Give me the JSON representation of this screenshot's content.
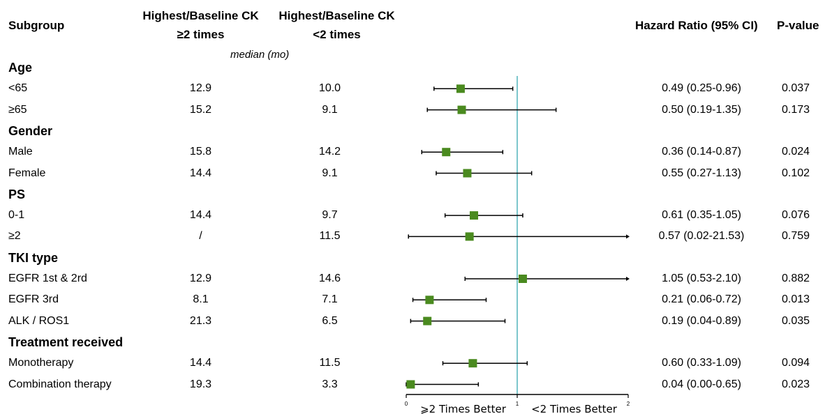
{
  "headers": {
    "subgroup": "Subgroup",
    "col1_line1": "Highest/Baseline CK",
    "col1_line2": "≥2 times",
    "col2_line1": "Highest/Baseline CK",
    "col2_line2": "<2 times",
    "median_note": "median (mo)",
    "hr": "Hazard Ratio (95% CI)",
    "p": "P-value"
  },
  "rows": [
    {
      "type": "section",
      "label": "Age"
    },
    {
      "type": "data",
      "label": "<65",
      "ge2": "12.9",
      "lt2": "10.0",
      "hr_text": "0.49 (0.25-0.96)",
      "p": "0.037"
    },
    {
      "type": "data",
      "label": "≥65",
      "ge2": "15.2",
      "lt2": "9.1",
      "hr_text": "0.50 (0.19-1.35)",
      "p": "0.173"
    },
    {
      "type": "section",
      "label": "Gender"
    },
    {
      "type": "data",
      "label": "Male",
      "ge2": "15.8",
      "lt2": "14.2",
      "hr_text": "0.36 (0.14-0.87)",
      "p": "0.024"
    },
    {
      "type": "data",
      "label": "Female",
      "ge2": "14.4",
      "lt2": "9.1",
      "hr_text": "0.55 (0.27-1.13)",
      "p": "0.102"
    },
    {
      "type": "section",
      "label": "PS"
    },
    {
      "type": "data",
      "label": "0-1",
      "ge2": "14.4",
      "lt2": "9.7",
      "hr_text": "0.61 (0.35-1.05)",
      "p": "0.076"
    },
    {
      "type": "data",
      "label": "≥2",
      "ge2": "/",
      "lt2": "11.5",
      "hr_text": "0.57 (0.02-21.53)",
      "p": "0.759"
    },
    {
      "type": "section",
      "label": "TKI type"
    },
    {
      "type": "data",
      "label": "EGFR 1st & 2rd",
      "ge2": "12.9",
      "lt2": "14.6",
      "hr_text": "1.05 (0.53-2.10)",
      "p": "0.882"
    },
    {
      "type": "data",
      "label": "EGFR 3rd",
      "ge2": "8.1",
      "lt2": "7.1",
      "hr_text": "0.21 (0.06-0.72)",
      "p": "0.013"
    },
    {
      "type": "data",
      "label": "ALK / ROS1",
      "ge2": "21.3",
      "lt2": "6.5",
      "hr_text": "0.19 (0.04-0.89)",
      "p": "0.035"
    },
    {
      "type": "section",
      "label": "Treatment received"
    },
    {
      "type": "data",
      "label": "Monotherapy",
      "ge2": "14.4",
      "lt2": "11.5",
      "hr_text": "0.60 (0.33-1.09)",
      "p": "0.094"
    },
    {
      "type": "data",
      "label": "Combination therapy",
      "ge2": "19.3",
      "lt2": "3.3",
      "hr_text": "0.04 (0.00-0.65)",
      "p": "0.023"
    }
  ],
  "chart_data": {
    "type": "scatter",
    "subtype": "forest",
    "categories": [
      "<65",
      "≥65",
      "Male",
      "Female",
      "0-1",
      "≥2",
      "EGFR 1st & 2rd",
      "EGFR 3rd",
      "ALK / ROS1",
      "Monotherapy",
      "Combination therapy"
    ],
    "hr": [
      0.49,
      0.5,
      0.36,
      0.55,
      0.61,
      0.57,
      1.05,
      0.21,
      0.19,
      0.6,
      0.04
    ],
    "ci_low": [
      0.25,
      0.19,
      0.14,
      0.27,
      0.35,
      0.02,
      0.53,
      0.06,
      0.04,
      0.33,
      0.0
    ],
    "ci_high": [
      0.96,
      1.35,
      0.87,
      1.13,
      1.05,
      21.53,
      2.1,
      0.72,
      0.89,
      1.09,
      0.65
    ],
    "xlim": [
      0,
      2
    ],
    "xticks": [
      "0",
      "1",
      "2"
    ],
    "reference_line": 1,
    "left_label": "⩾2 Times Better",
    "right_label": "<2 Times Better",
    "marker_color": "#4a8a1f",
    "reference_color": "#7cc6cc"
  }
}
